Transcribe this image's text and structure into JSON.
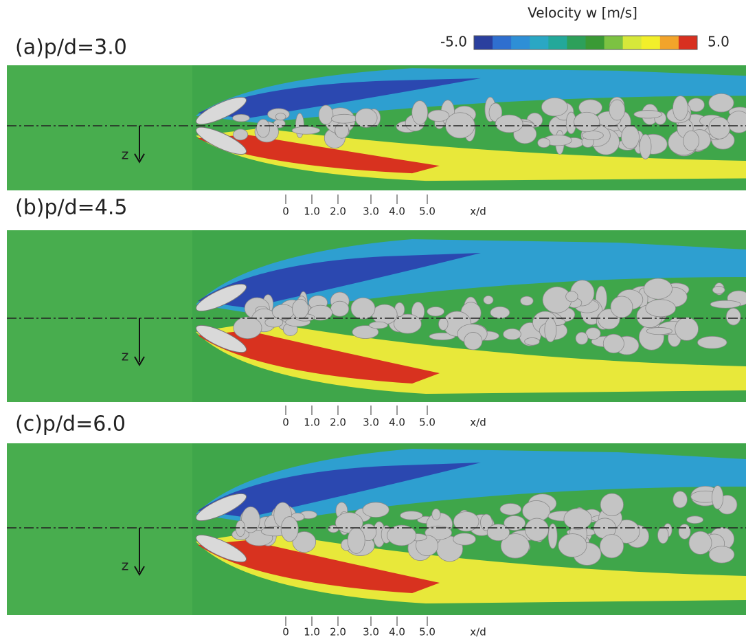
{
  "colorbar": {
    "title": "Velocity w [m/s]",
    "min_label": "-5.0",
    "max_label": "5.0",
    "colors": [
      "#2a3f9e",
      "#2f6fcf",
      "#2e8fd6",
      "#2aa7c4",
      "#23a89a",
      "#2da05a",
      "#3a9a35",
      "#7cc242",
      "#d6e83a",
      "#f2ef2a",
      "#f2a42a",
      "#d83020"
    ]
  },
  "panels": [
    {
      "label": "(a)p/d=3.0",
      "z_label": "z",
      "x_ticks": [
        "0",
        "1.0",
        "2.0",
        "3.0",
        "4.0",
        "5.0"
      ],
      "x_label": "x/d"
    },
    {
      "label": "(b)p/d=4.5",
      "z_label": "z",
      "x_ticks": [
        "0",
        "1.0",
        "2.0",
        "3.0",
        "4.0",
        "5.0"
      ],
      "x_label": "x/d"
    },
    {
      "label": "(c)p/d=6.0",
      "z_label": "z",
      "x_ticks": [
        "0",
        "1.0",
        "2.0",
        "3.0",
        "4.0",
        "5.0"
      ],
      "x_label": "x/d"
    }
  ]
}
